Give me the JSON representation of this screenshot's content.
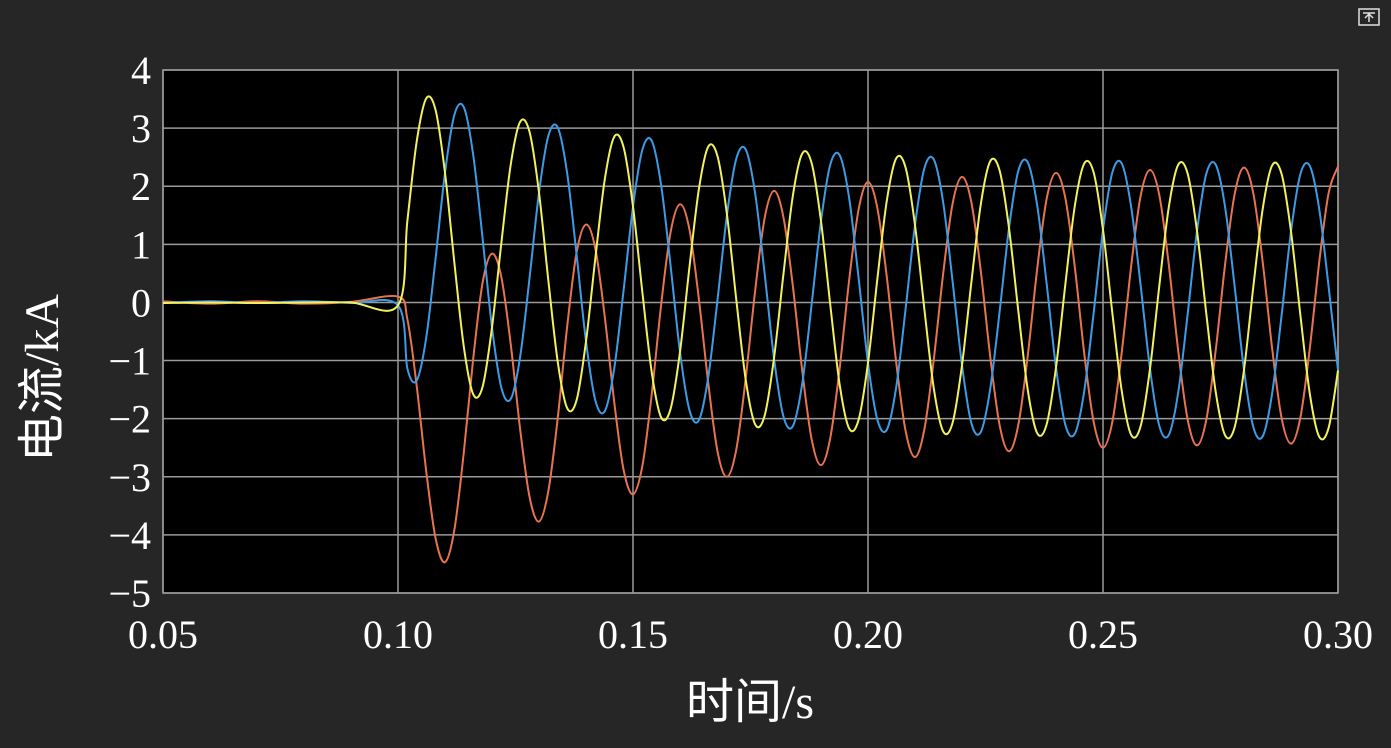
{
  "chart_data": {
    "type": "line",
    "xlabel": "时间/s",
    "ylabel": "电流/kA",
    "xlim": [
      0.05,
      0.3
    ],
    "ylim": [
      -5,
      4
    ],
    "xticks": [
      0.05,
      {
        "value": 0.1,
        "label": "0.10"
      },
      0.15,
      {
        "value": 0.2,
        "label": "0.20"
      },
      0.25,
      {
        "value": 0.3,
        "label": "0.30"
      }
    ],
    "yticks": [
      {
        "value": -5,
        "label": "−5"
      },
      {
        "value": -4,
        "label": "−4"
      },
      {
        "value": -3,
        "label": "−3"
      },
      {
        "value": -2,
        "label": "−2"
      },
      {
        "value": -1,
        "label": "−1"
      },
      0,
      1,
      2,
      3,
      4
    ],
    "grid": true,
    "x": [
      0.05,
      0.06,
      0.07,
      0.08,
      0.09,
      0.1,
      0.102,
      0.104,
      0.106,
      0.108,
      0.11,
      0.112,
      0.114,
      0.116,
      0.118,
      0.12,
      0.122,
      0.124,
      0.126,
      0.128,
      0.13,
      0.132,
      0.134,
      0.136,
      0.138,
      0.14,
      0.142,
      0.144,
      0.146,
      0.148,
      0.15,
      0.152,
      0.154,
      0.156,
      0.158,
      0.16,
      0.162,
      0.164,
      0.166,
      0.168,
      0.17,
      0.172,
      0.174,
      0.176,
      0.178,
      0.18,
      0.182,
      0.184,
      0.186,
      0.188,
      0.19,
      0.192,
      0.194,
      0.196,
      0.198,
      0.2,
      0.202,
      0.204,
      0.206,
      0.208,
      0.21,
      0.212,
      0.214,
      0.216,
      0.218,
      0.22,
      0.222,
      0.224,
      0.226,
      0.228,
      0.23,
      0.232,
      0.234,
      0.236,
      0.238,
      0.24,
      0.242,
      0.244,
      0.246,
      0.248,
      0.25,
      0.252,
      0.254,
      0.256,
      0.258,
      0.26,
      0.262,
      0.264,
      0.266,
      0.268,
      0.27,
      0.272,
      0.274,
      0.276,
      0.278,
      0.28,
      0.282,
      0.284,
      0.286,
      0.288,
      0.29,
      0.292,
      0.294,
      0.296,
      0.298,
      0.3
    ],
    "series": [
      {
        "color": "#e8734f",
        "values": [
          0.02,
          -0.02,
          0.02,
          -0.02,
          0.01,
          0.1,
          -0.29,
          -1.45,
          -2.9,
          -4.06,
          -4.47,
          -3.91,
          -2.58,
          -0.97,
          0.34,
          0.84,
          0.43,
          -0.73,
          -2.19,
          -3.35,
          -3.77,
          -3.24,
          -1.98,
          -0.41,
          0.86,
          1.34,
          0.92,
          -0.25,
          -1.71,
          -2.88,
          -3.3,
          -2.81,
          -1.57,
          -0.03,
          1.21,
          1.69,
          1.26,
          0.07,
          -1.38,
          -2.57,
          -3.0,
          -2.52,
          -1.29,
          0.21,
          1.45,
          1.92,
          1.47,
          0.29,
          -1.17,
          -2.35,
          -2.8,
          -2.32,
          -1.11,
          0.39,
          1.6,
          2.07,
          1.62,
          0.44,
          -1.03,
          -2.21,
          -2.66,
          -2.18,
          -0.98,
          0.5,
          1.7,
          2.16,
          1.72,
          0.54,
          -0.93,
          -2.11,
          -2.56,
          -2.1,
          -0.91,
          0.58,
          1.78,
          2.23,
          1.79,
          0.61,
          -0.87,
          -2.05,
          -2.5,
          -2.05,
          -0.85,
          0.63,
          1.83,
          2.28,
          1.84,
          0.65,
          -0.83,
          -2.01,
          -2.46,
          -2.01,
          -0.81,
          0.67,
          1.86,
          2.32,
          1.87,
          0.68,
          -0.8,
          -1.99,
          -2.43,
          -1.98,
          -0.79,
          0.69,
          1.88,
          2.34
        ]
      },
      {
        "color": "#3d9be6",
        "values": [
          -0.01,
          0.02,
          -0.01,
          0.02,
          -0.01,
          -0.05,
          -1.14,
          -1.34,
          -0.61,
          0.76,
          2.23,
          3.23,
          3.36,
          2.54,
          1.1,
          -0.43,
          -1.47,
          -1.66,
          -0.93,
          0.43,
          1.89,
          2.87,
          3.01,
          2.22,
          0.82,
          -0.67,
          -1.69,
          -1.87,
          -1.14,
          0.21,
          1.65,
          2.63,
          2.78,
          2.01,
          0.63,
          -0.85,
          -1.85,
          -2.03,
          -1.29,
          0.06,
          1.51,
          2.48,
          2.63,
          1.87,
          0.5,
          -0.96,
          -1.96,
          -2.13,
          -1.4,
          -0.04,
          1.4,
          2.38,
          2.53,
          1.79,
          0.42,
          -1.04,
          -2.02,
          -2.19,
          -1.46,
          -0.11,
          1.33,
          2.31,
          2.46,
          1.72,
          0.36,
          -1.08,
          -2.08,
          -2.23,
          -1.49,
          -0.16,
          1.28,
          2.27,
          2.41,
          1.67,
          0.33,
          -1.12,
          -2.11,
          -2.26,
          -1.53,
          -0.19,
          1.25,
          2.24,
          2.39,
          1.64,
          0.3,
          -1.14,
          -2.13,
          -2.28,
          -1.55,
          -0.21,
          1.23,
          2.22,
          2.37,
          1.63,
          0.28,
          -1.16,
          -2.15,
          -2.3,
          -1.56,
          -0.22,
          1.22,
          2.21,
          2.35,
          1.61,
          0.27,
          -1.17
        ]
      },
      {
        "color": "#f2f25c",
        "values": [
          -0.01,
          0.0,
          -0.01,
          0.0,
          0.0,
          -0.05,
          1.41,
          2.78,
          3.51,
          3.31,
          2.23,
          0.68,
          -0.76,
          -1.58,
          -1.45,
          -0.43,
          1.03,
          2.38,
          3.11,
          2.93,
          1.89,
          0.37,
          -1.03,
          -1.82,
          -1.68,
          -0.67,
          0.77,
          2.12,
          2.85,
          2.67,
          1.65,
          0.17,
          -1.21,
          -1.98,
          -1.83,
          -0.85,
          0.6,
          1.94,
          2.68,
          2.51,
          1.51,
          0.03,
          -1.34,
          -2.1,
          -1.95,
          -0.96,
          0.48,
          1.83,
          2.56,
          2.4,
          1.4,
          -0.06,
          -1.43,
          -2.17,
          -2.02,
          -1.04,
          0.41,
          1.75,
          2.48,
          2.32,
          1.33,
          -0.12,
          -1.48,
          -2.22,
          -2.07,
          -1.08,
          0.35,
          1.69,
          2.43,
          2.27,
          1.28,
          -0.16,
          -1.51,
          -2.25,
          -2.1,
          -1.12,
          0.32,
          1.66,
          2.39,
          2.24,
          1.25,
          -0.19,
          -1.53,
          -2.28,
          -2.13,
          -1.14,
          0.3,
          1.64,
          2.37,
          2.22,
          1.23,
          -0.21,
          -1.55,
          -2.29,
          -2.15,
          -1.16,
          0.28,
          1.62,
          2.36,
          2.21,
          1.22,
          -0.22,
          -1.57,
          -2.31,
          -2.16,
          -1.17
        ]
      }
    ]
  }
}
